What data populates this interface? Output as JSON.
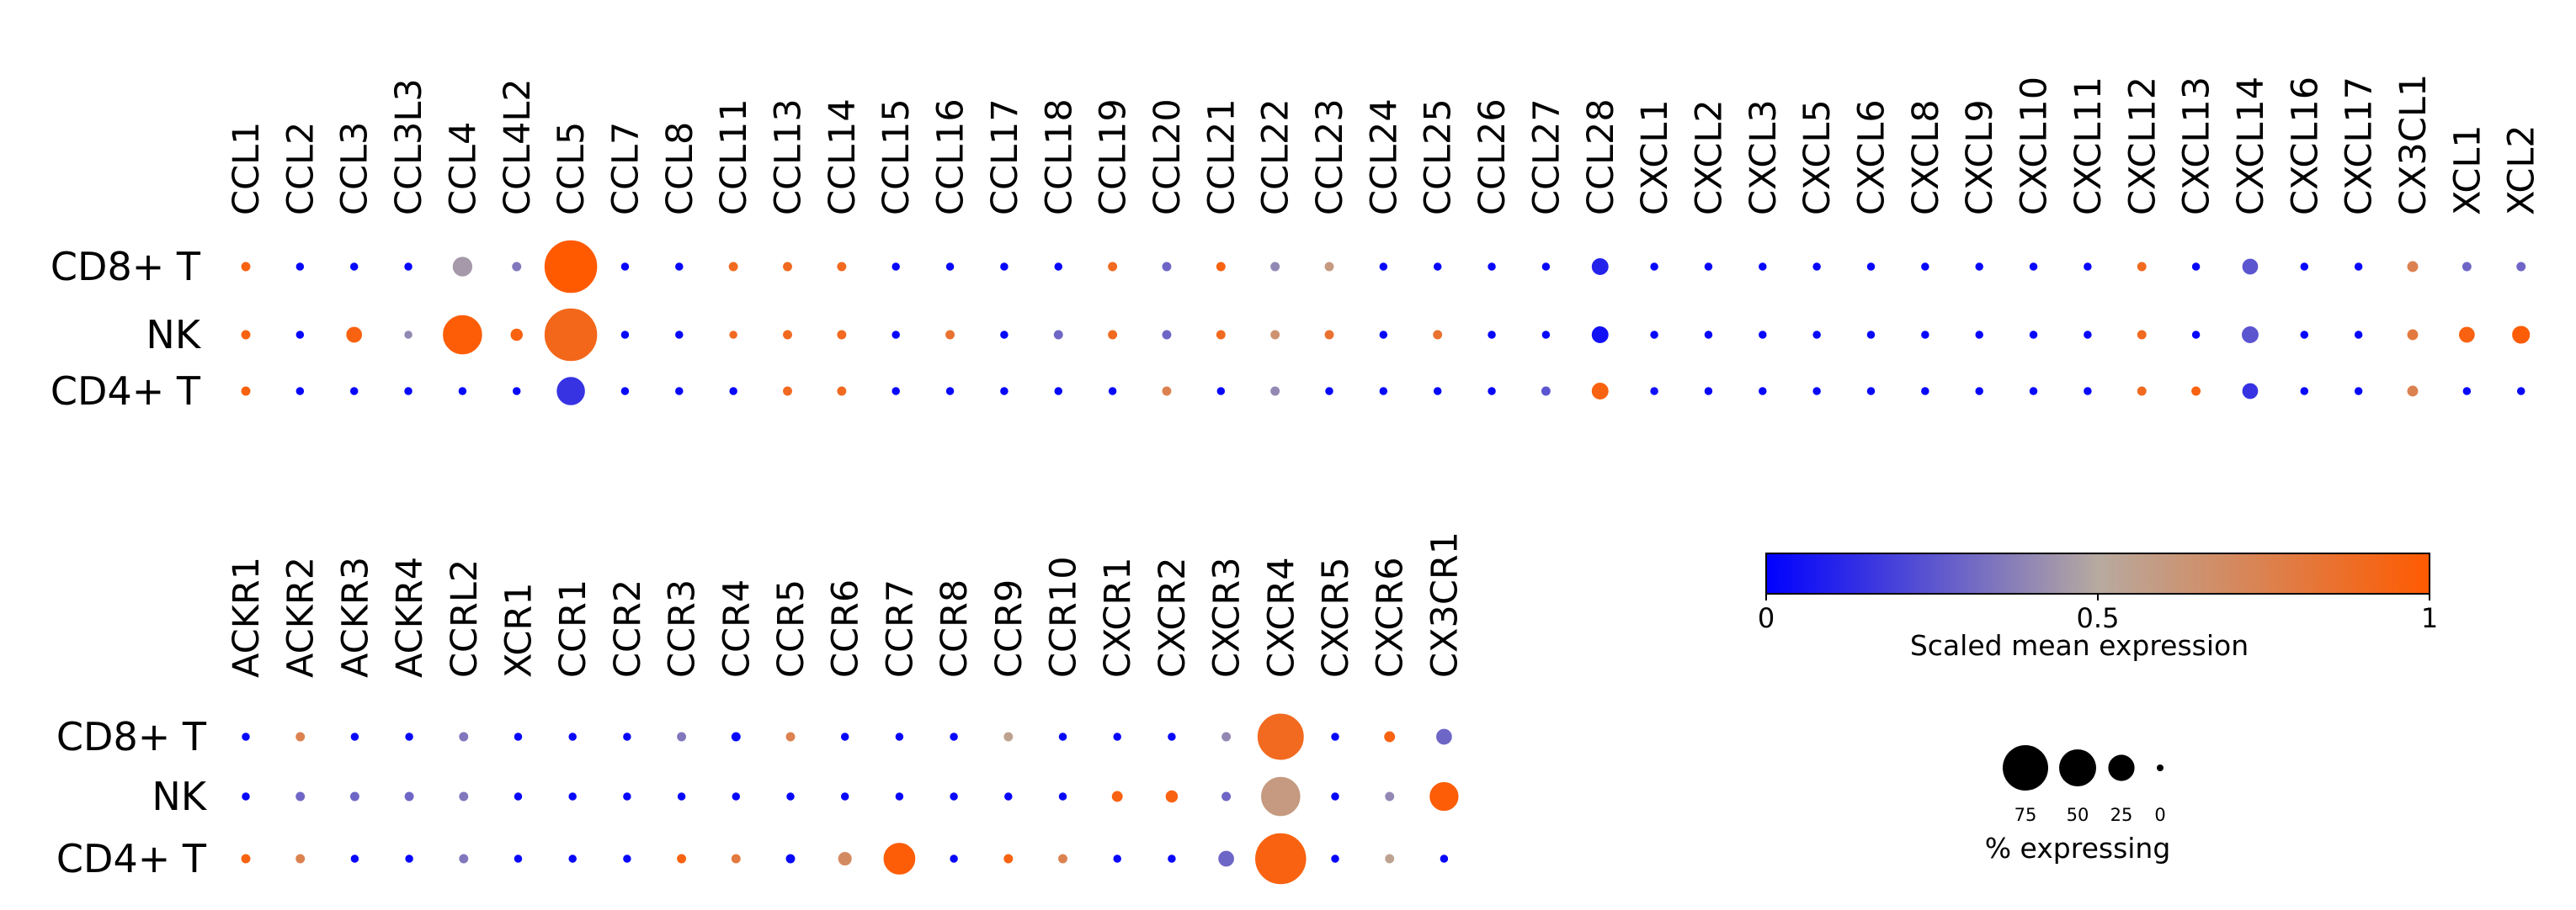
{
  "chart_data": [
    {
      "type": "dotplot",
      "rows": [
        "CD8+ T",
        "NK",
        "CD4+ T"
      ],
      "columns": [
        "CCL1",
        "CCL2",
        "CCL3",
        "CCL3L3",
        "CCL4",
        "CCL4L2",
        "CCL5",
        "CCL7",
        "CCL8",
        "CCL11",
        "CCL13",
        "CCL14",
        "CCL15",
        "CCL16",
        "CCL17",
        "CCL18",
        "CCL19",
        "CCL20",
        "CCL21",
        "CCL22",
        "CCL23",
        "CCL24",
        "CCL25",
        "CCL26",
        "CCL27",
        "CCL28",
        "CXCL1",
        "CXCL2",
        "CXCL3",
        "CXCL5",
        "CXCL6",
        "CXCL8",
        "CXCL9",
        "CXCL10",
        "CXCL11",
        "CXCL12",
        "CXCL13",
        "CXCL14",
        "CXCL16",
        "CXCL17",
        "CX3CL1",
        "XCL1",
        "XCL2"
      ],
      "expression": [
        [
          0.95,
          0.02,
          0.02,
          0.02,
          0.45,
          0.35,
          1.0,
          0.02,
          0.02,
          0.9,
          0.9,
          0.9,
          0.02,
          0.02,
          0.02,
          0.02,
          0.9,
          0.3,
          0.95,
          0.4,
          0.6,
          0.02,
          0.02,
          0.02,
          0.02,
          0.1,
          0.02,
          0.02,
          0.02,
          0.02,
          0.02,
          0.02,
          0.02,
          0.02,
          0.02,
          0.9,
          0.02,
          0.25,
          0.02,
          0.02,
          0.75,
          0.3,
          0.3
        ],
        [
          0.95,
          0.02,
          0.95,
          0.4,
          0.98,
          0.95,
          0.92,
          0.02,
          0.02,
          0.9,
          0.9,
          0.9,
          0.02,
          0.85,
          0.02,
          0.3,
          0.9,
          0.3,
          0.9,
          0.65,
          0.85,
          0.02,
          0.85,
          0.02,
          0.02,
          0.05,
          0.02,
          0.02,
          0.02,
          0.02,
          0.02,
          0.02,
          0.02,
          0.02,
          0.02,
          0.9,
          0.02,
          0.25,
          0.02,
          0.02,
          0.8,
          0.95,
          0.98
        ],
        [
          0.95,
          0.02,
          0.02,
          0.02,
          0.02,
          0.02,
          0.15,
          0.02,
          0.02,
          0.02,
          0.9,
          0.9,
          0.02,
          0.02,
          0.02,
          0.02,
          0.02,
          0.75,
          0.02,
          0.4,
          0.02,
          0.02,
          0.02,
          0.02,
          0.25,
          0.95,
          0.05,
          0.02,
          0.02,
          0.02,
          0.02,
          0.02,
          0.02,
          0.02,
          0.02,
          0.9,
          0.95,
          0.15,
          0.02,
          0.02,
          0.75,
          0.02,
          0.02
        ]
      ],
      "pct_expressing": [
        [
          3,
          2,
          2,
          2,
          12,
          3,
          80,
          2,
          2,
          3,
          3,
          3,
          2,
          2,
          2,
          2,
          3,
          3,
          3,
          3,
          3,
          2,
          2,
          2,
          2,
          9,
          2,
          2,
          2,
          2,
          2,
          2,
          2,
          2,
          2,
          3,
          2,
          8,
          2,
          2,
          4,
          3,
          3
        ],
        [
          3,
          2,
          8,
          2,
          45,
          5,
          80,
          2,
          2,
          2,
          3,
          3,
          2,
          3,
          2,
          3,
          3,
          3,
          3,
          3,
          3,
          2,
          3,
          2,
          2,
          9,
          2,
          2,
          2,
          2,
          2,
          2,
          2,
          2,
          2,
          3,
          2,
          9,
          2,
          2,
          4,
          8,
          10
        ],
        [
          3,
          2,
          2,
          2,
          2,
          2,
          24,
          2,
          2,
          2,
          3,
          3,
          2,
          2,
          2,
          2,
          2,
          3,
          2,
          3,
          2,
          2,
          2,
          2,
          3,
          9,
          2,
          2,
          2,
          2,
          2,
          2,
          2,
          2,
          2,
          3,
          3,
          8,
          2,
          2,
          4,
          2,
          2
        ]
      ]
    },
    {
      "type": "dotplot",
      "rows": [
        "CD8+ T",
        "NK",
        "CD4+ T"
      ],
      "columns": [
        "ACKR1",
        "ACKR2",
        "ACKR3",
        "ACKR4",
        "CCRL2",
        "XCR1",
        "CCR1",
        "CCR2",
        "CCR3",
        "CCR4",
        "CCR5",
        "CCR6",
        "CCR7",
        "CCR8",
        "CCR9",
        "CCR10",
        "CXCR1",
        "CXCR2",
        "CXCR3",
        "CXCR4",
        "CXCR5",
        "CXCR6",
        "CX3CR1"
      ],
      "expression": [
        [
          0.02,
          0.75,
          0.02,
          0.02,
          0.35,
          0.02,
          0.02,
          0.02,
          0.35,
          0.02,
          0.75,
          0.02,
          0.02,
          0.02,
          0.55,
          0.02,
          0.02,
          0.02,
          0.4,
          0.9,
          0.02,
          0.95,
          0.3
        ],
        [
          0.02,
          0.3,
          0.3,
          0.3,
          0.35,
          0.02,
          0.02,
          0.02,
          0.02,
          0.02,
          0.02,
          0.02,
          0.02,
          0.02,
          0.02,
          0.02,
          0.95,
          0.95,
          0.3,
          0.6,
          0.02,
          0.4,
          0.98
        ],
        [
          0.95,
          0.75,
          0.02,
          0.02,
          0.35,
          0.02,
          0.02,
          0.02,
          0.95,
          0.8,
          0.02,
          0.7,
          0.98,
          0.02,
          0.95,
          0.75,
          0.02,
          0.02,
          0.3,
          0.95,
          0.02,
          0.55,
          0.02
        ]
      ],
      "pct_expressing": [
        [
          2,
          3,
          2,
          2,
          3,
          2,
          2,
          2,
          3,
          3,
          3,
          2,
          2,
          2,
          3,
          2,
          2,
          2,
          3,
          62,
          2,
          4,
          8
        ],
        [
          2,
          3,
          3,
          3,
          3,
          2,
          2,
          2,
          2,
          2,
          2,
          2,
          2,
          2,
          2,
          2,
          4,
          5,
          3,
          45,
          2,
          3,
          25
        ],
        [
          3,
          3,
          2,
          2,
          3,
          2,
          2,
          2,
          3,
          3,
          3,
          6,
          30,
          2,
          3,
          3,
          2,
          2,
          8,
          75,
          2,
          3,
          2
        ]
      ],
      "colorbar": {
        "title": "Scaled mean expression",
        "ticks": [
          "0",
          "0.5",
          "1"
        ],
        "range": [
          0,
          1
        ],
        "colors": [
          "#0000ff",
          "#b7aaa0",
          "#ff5a00"
        ]
      },
      "size_legend": {
        "title": "% expressing",
        "values": [
          75,
          50,
          25,
          0
        ],
        "labels": [
          "75",
          "50",
          "25",
          "0"
        ]
      }
    }
  ]
}
